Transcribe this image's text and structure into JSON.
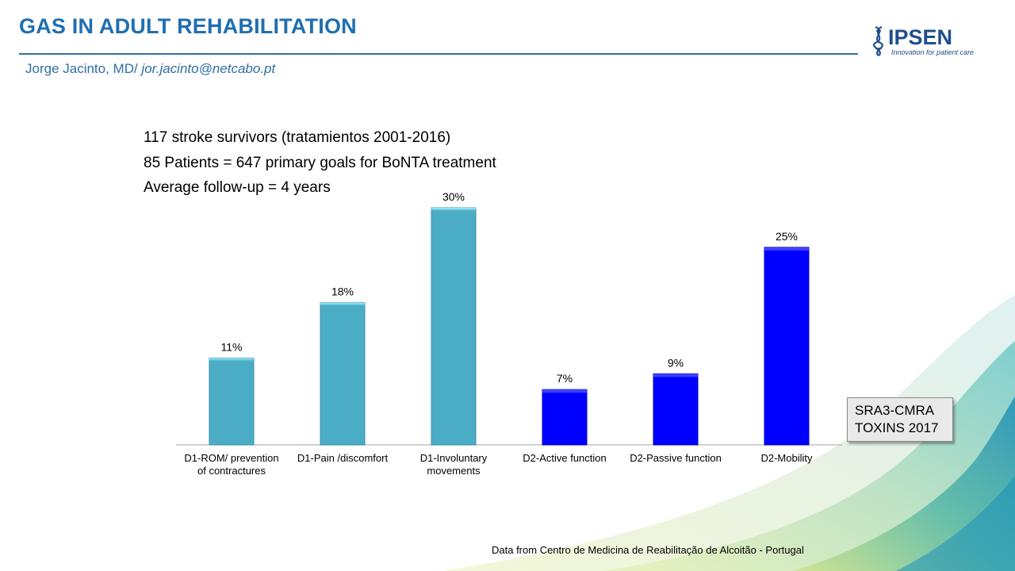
{
  "header": {
    "title": "GAS IN ADULT REHABILITATION",
    "author_name": "Jorge Jacinto, MD/ ",
    "author_email": "jor.jacinto@netcabo.pt"
  },
  "logo": {
    "name": "IPSEN",
    "tagline": "Innovation for patient care",
    "icon": "dna-helix-icon"
  },
  "info_lines": [
    "117 stroke survivors (tratamientos 2001-2016)",
    "85 Patients = 647 primary goals for BoNTA treatment",
    "Average follow-up = 4 years"
  ],
  "tag": {
    "line1": "SRA3-CMRA",
    "line2": "TOXINS 2017"
  },
  "footer": {
    "prefix": "Data from ",
    "source": "Centro de Medicina de Reabilitação de Alcoitão - Portugal"
  },
  "colors": {
    "title": "#1f6fb0",
    "d1_bar": "#4bacc6",
    "d2_bar": "#0000ff"
  },
  "chart_data": {
    "type": "bar",
    "categories": [
      [
        "D1-ROM/ prevention",
        "of contractures"
      ],
      [
        "D1-Pain /discomfort"
      ],
      [
        "D1-Involuntary",
        "movements"
      ],
      [
        "D2-Active function"
      ],
      [
        "D2-Passive function"
      ],
      [
        "D2-Mobility"
      ]
    ],
    "values": [
      11,
      18,
      30,
      7,
      9,
      25
    ],
    "data_labels": [
      "11%",
      "18%",
      "30%",
      "7%",
      "9%",
      "25%"
    ],
    "bar_colors": [
      "#4bacc6",
      "#4bacc6",
      "#4bacc6",
      "#0000ff",
      "#0000ff",
      "#0000ff"
    ],
    "ylim": [
      0,
      30
    ],
    "grid": false,
    "legend": "none",
    "title": "",
    "xlabel": "",
    "ylabel": ""
  }
}
